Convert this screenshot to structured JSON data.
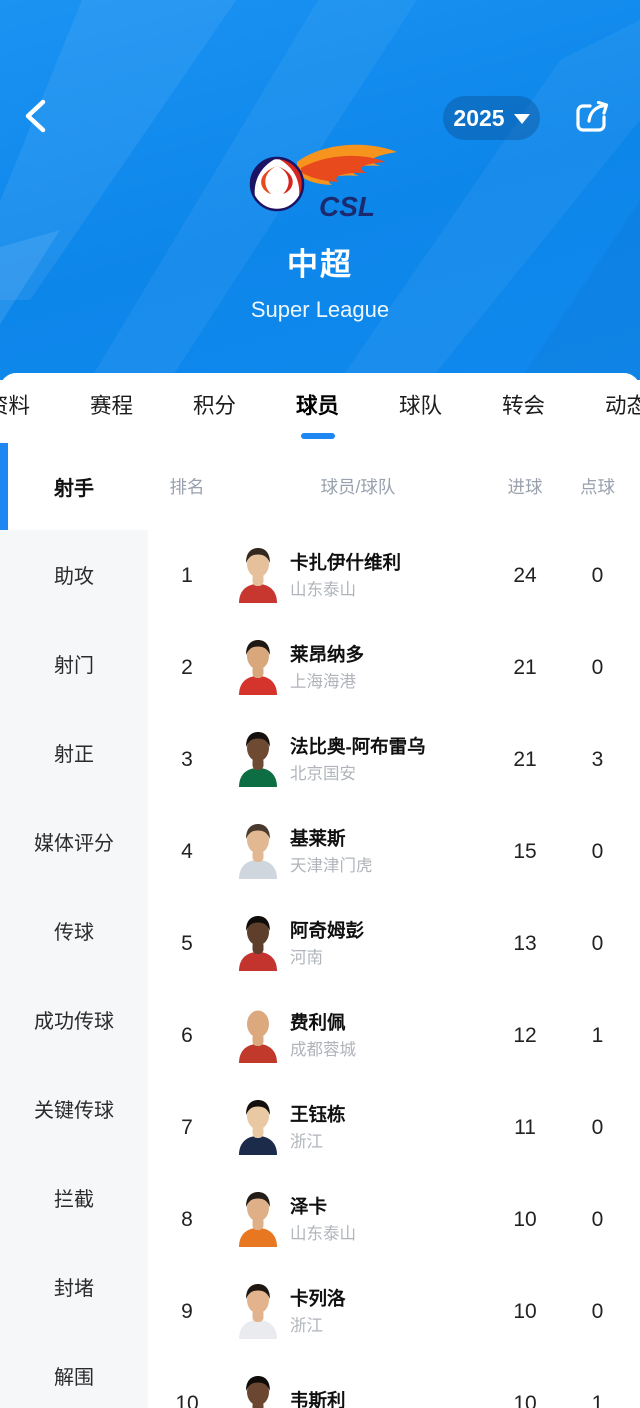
{
  "colors": {
    "accent": "#1f87f2",
    "hero_blue": "#0d86ea",
    "sidebar_bg": "#f6f7f9",
    "muted_text": "#98a1ad",
    "team_text": "#b0b5bb"
  },
  "header": {
    "back_icon": "chevron-left",
    "year_selector": {
      "value": "2025",
      "dropdown_icon": "caret-down"
    },
    "share_icon": "share-arrow",
    "logo_text": "CSL",
    "title": "中超",
    "subtitle": "Super League"
  },
  "tabs": [
    {
      "label": "资料",
      "active": false
    },
    {
      "label": "赛程",
      "active": false
    },
    {
      "label": "积分",
      "active": false
    },
    {
      "label": "球员",
      "active": true
    },
    {
      "label": "球队",
      "active": false
    },
    {
      "label": "转会",
      "active": false
    },
    {
      "label": "动态",
      "active": false
    }
  ],
  "stats_sidebar": {
    "selected": "射手",
    "items": [
      "助攻",
      "射门",
      "射正",
      "媒体评分",
      "传球",
      "成功传球",
      "关键传球",
      "拦截",
      "封堵",
      "解围"
    ]
  },
  "table": {
    "columns": [
      "排名",
      "球员/球队",
      "进球",
      "点球"
    ],
    "rows": [
      {
        "rank": "1",
        "name": "卡扎伊什维利",
        "team": "山东泰山",
        "goals": "24",
        "penalties": "0",
        "avatar": {
          "skin": "#e6c09a",
          "hair": "#32281f",
          "jersey": "#c7372f",
          "bald": false
        }
      },
      {
        "rank": "2",
        "name": "莱昂纳多",
        "team": "上海海港",
        "goals": "21",
        "penalties": "0",
        "avatar": {
          "skin": "#d8a77c",
          "hair": "#1e1813",
          "jersey": "#d5342c",
          "bald": false
        }
      },
      {
        "rank": "3",
        "name": "法比奥-阿布雷乌",
        "team": "北京国安",
        "goals": "21",
        "penalties": "3",
        "avatar": {
          "skin": "#6e4a33",
          "hair": "#15110e",
          "jersey": "#0d6e43",
          "bald": false
        }
      },
      {
        "rank": "4",
        "name": "基莱斯",
        "team": "天津津门虎",
        "goals": "15",
        "penalties": "0",
        "avatar": {
          "skin": "#e2b892",
          "hair": "#4a3a2d",
          "jersey": "#cfd6de",
          "bald": false
        }
      },
      {
        "rank": "5",
        "name": "阿奇姆彭",
        "team": "河南",
        "goals": "13",
        "penalties": "0",
        "avatar": {
          "skin": "#5d3f2c",
          "hair": "#0f0c0a",
          "jersey": "#c4342f",
          "bald": false
        }
      },
      {
        "rank": "6",
        "name": "费利佩",
        "team": "成都蓉城",
        "goals": "12",
        "penalties": "1",
        "avatar": {
          "skin": "#dca97f",
          "hair": "#dca97f",
          "jersey": "#c0392b",
          "bald": true
        }
      },
      {
        "rank": "7",
        "name": "王钰栋",
        "team": "浙江",
        "goals": "11",
        "penalties": "0",
        "avatar": {
          "skin": "#e9c9a4",
          "hair": "#14100e",
          "jersey": "#1c2b4a",
          "bald": false
        }
      },
      {
        "rank": "8",
        "name": "泽卡",
        "team": "山东泰山",
        "goals": "10",
        "penalties": "0",
        "avatar": {
          "skin": "#dfb088",
          "hair": "#241c16",
          "jersey": "#e87722",
          "bald": false
        }
      },
      {
        "rank": "9",
        "name": "卡列洛",
        "team": "浙江",
        "goals": "10",
        "penalties": "0",
        "avatar": {
          "skin": "#e2b38c",
          "hair": "#1f1712",
          "jersey": "#e9ebee",
          "bald": false
        }
      },
      {
        "rank": "10",
        "name": "韦斯利",
        "team": "",
        "goals": "10",
        "penalties": "1",
        "avatar": {
          "skin": "#6b4630",
          "hair": "#0e0b09",
          "jersey": "#cc3b33",
          "bald": false
        }
      }
    ]
  }
}
